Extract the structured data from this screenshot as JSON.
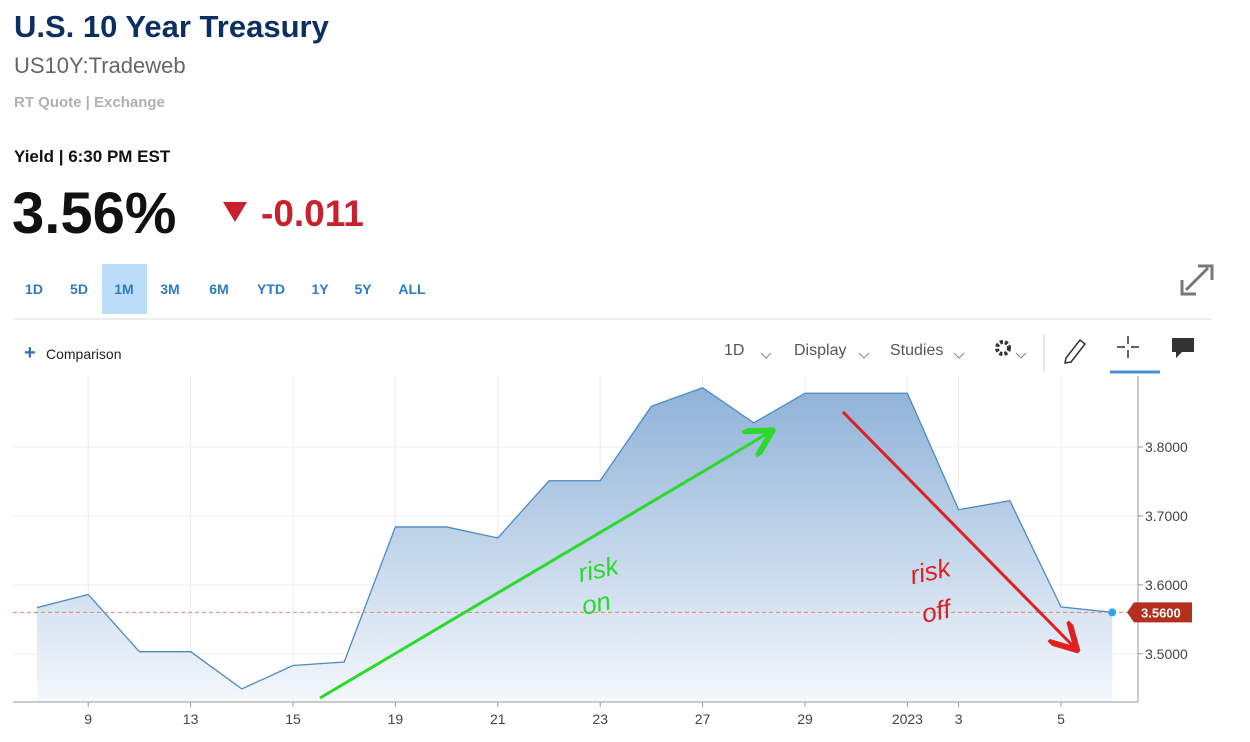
{
  "header": {
    "title": "U.S. 10 Year Treasury",
    "symbol": "US10Y:Tradeweb",
    "quote_source": "RT Quote | Exchange",
    "yield_time": "Yield | 6:30 PM EST",
    "price": "3.56%",
    "change": "-0.011"
  },
  "tabs": {
    "items": [
      "1D",
      "5D",
      "1M",
      "3M",
      "6M",
      "YTD",
      "1Y",
      "5Y",
      "ALL"
    ],
    "active": 2
  },
  "toolbar": {
    "comparison": "Comparison",
    "interval": "1D",
    "display": "Display",
    "studies": "Studies"
  },
  "chart_data": {
    "type": "area",
    "categories": [
      null,
      "9",
      null,
      "13",
      null,
      "15",
      null,
      "19",
      null,
      "21",
      null,
      "23",
      null,
      "27",
      null,
      "29",
      null,
      "2023",
      "3",
      null,
      "5",
      null
    ],
    "values": [
      3.567,
      3.586,
      3.503,
      3.503,
      3.449,
      3.483,
      3.488,
      3.684,
      3.684,
      3.668,
      3.751,
      3.751,
      3.859,
      3.886,
      3.835,
      3.878,
      3.878,
      3.878,
      3.709,
      3.722,
      3.568,
      3.56
    ],
    "color": "#4a8ac4",
    "ylim": [
      3.43,
      3.903
    ],
    "yticks": [
      {
        "value": 3.5,
        "label": "3.5000"
      },
      {
        "value": 3.6,
        "label": "3.6000"
      },
      {
        "value": 3.7,
        "label": "3.7000"
      },
      {
        "value": 3.8,
        "label": "3.8000"
      }
    ],
    "grid": true,
    "last_value": {
      "value": 3.56,
      "label": "3.5600"
    },
    "annotations": [
      {
        "text": [
          "risk",
          "on"
        ],
        "color": "#2bd92b"
      },
      {
        "text": [
          "risk",
          "off"
        ],
        "color": "#e02020"
      }
    ]
  }
}
